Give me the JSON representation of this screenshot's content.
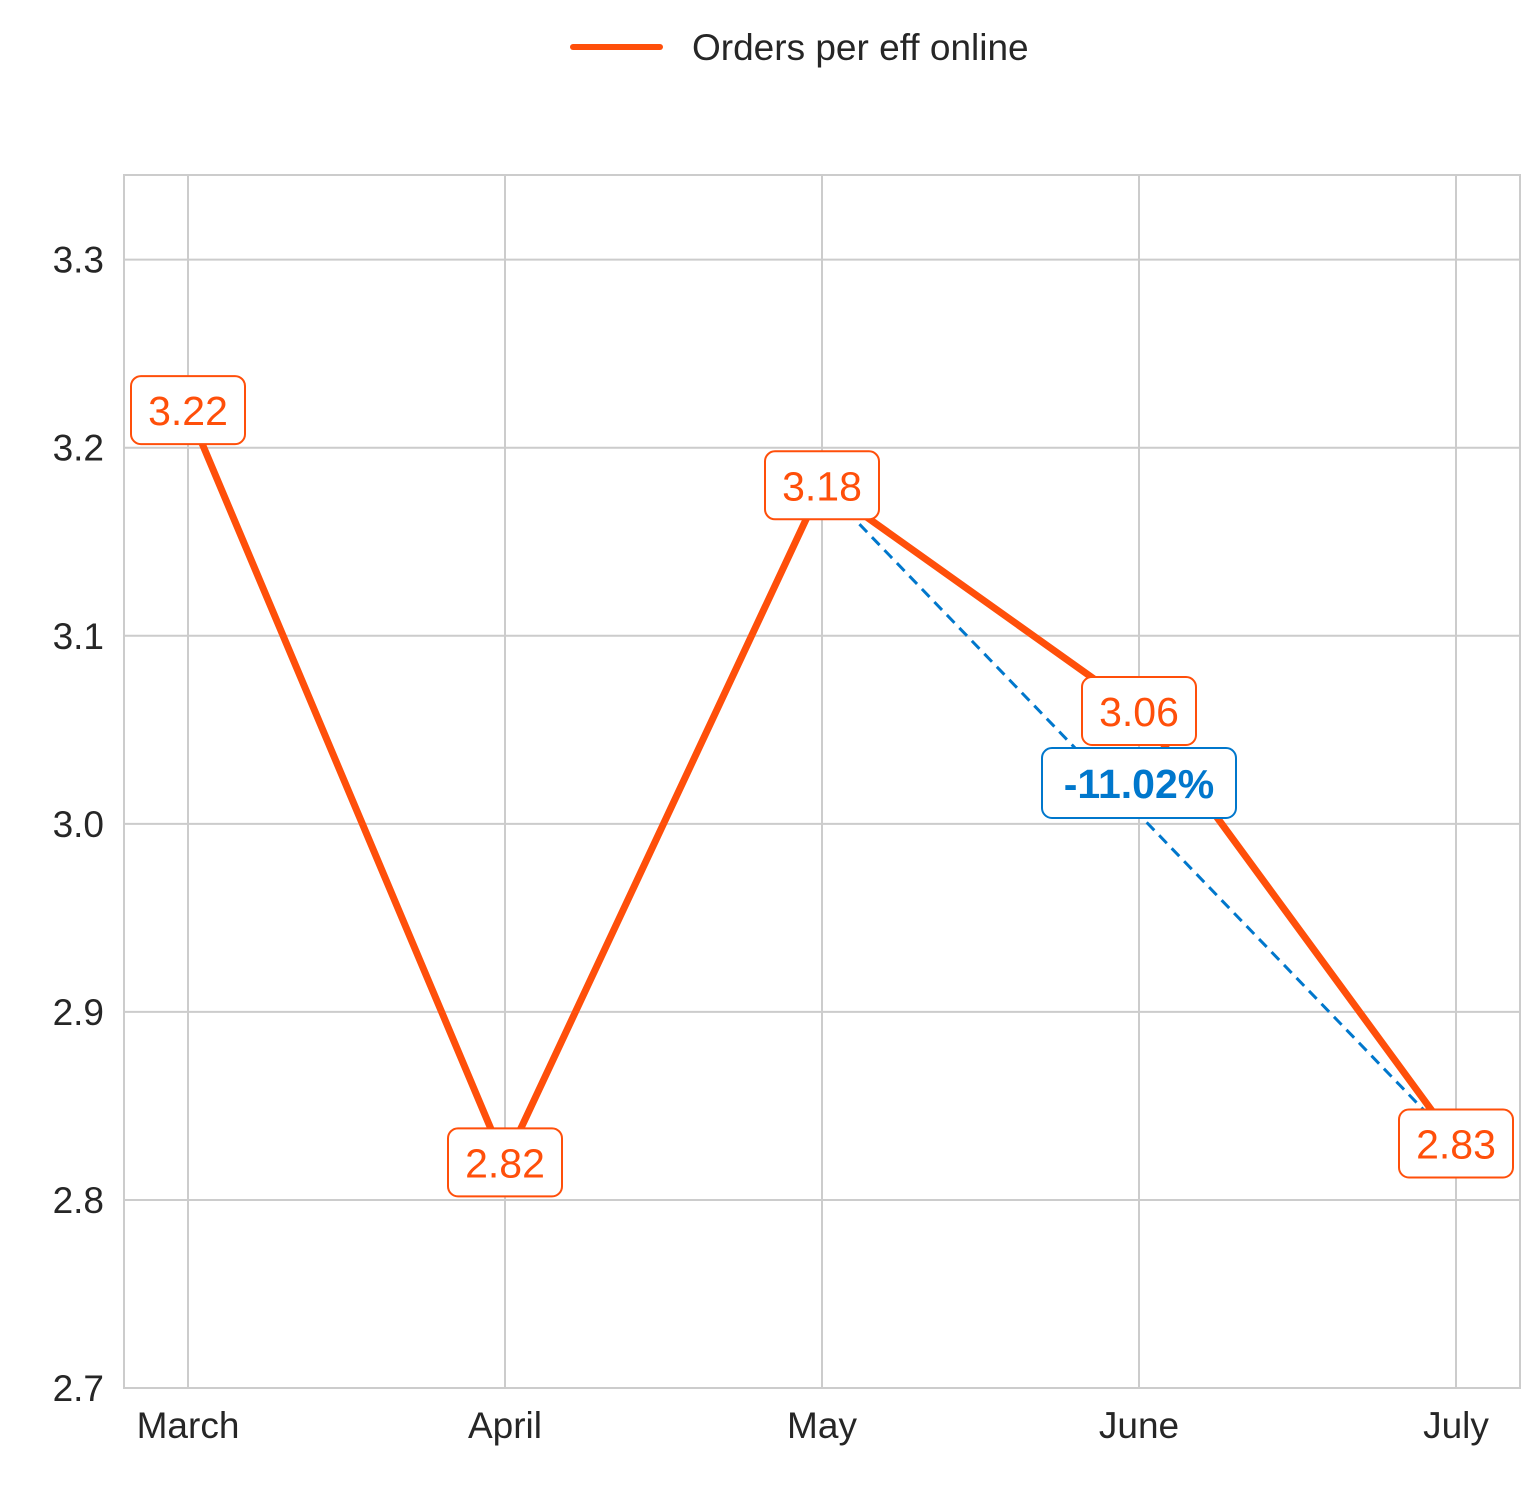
{
  "chart_data": {
    "type": "line",
    "title": "",
    "xlabel": "",
    "ylabel": "",
    "categories": [
      "March",
      "April",
      "May",
      "June",
      "July"
    ],
    "series": [
      {
        "name": "Orders per eff online",
        "color": "#ff4f0a",
        "values": [
          3.22,
          2.82,
          3.18,
          3.06,
          2.83
        ],
        "labels": [
          "3.22",
          "2.82",
          "3.18",
          "3.06",
          "2.83"
        ]
      }
    ],
    "ylim": [
      2.7,
      3.345
    ],
    "yticks": [
      2.7,
      2.8,
      2.9,
      3.0,
      3.1,
      3.2,
      3.3
    ],
    "ytick_labels": [
      "2.7",
      "2.8",
      "2.9",
      "3.0",
      "3.1",
      "3.2",
      "3.3"
    ],
    "grid": true,
    "legend_position": "top-center",
    "annotation": {
      "text": "-11.02%",
      "from_category": "May",
      "to_category": "July",
      "color": "#0077cc"
    }
  }
}
